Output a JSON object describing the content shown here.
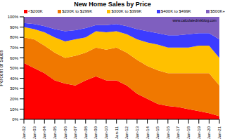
{
  "chart_data": {
    "type": "area",
    "title": "New Home Sales by Price",
    "y_label": "Percent of Sales",
    "annotation": "www.calculatedriskblog.com",
    "stacked": true,
    "grid": false,
    "legend": "top",
    "categories": [
      "Jan-02",
      "Jan-03",
      "Jan-04",
      "Jan-05",
      "Jan-06",
      "Jan-07",
      "Jan-08",
      "Jan-09",
      "Jan-10",
      "Jan-11",
      "Jan-12",
      "Jan-13",
      "Jan-14",
      "Jan-15",
      "Jan-16",
      "Jan-17",
      "Jan-18",
      "Jan-19",
      "Jan-20",
      "Jan-21"
    ],
    "ylim": [
      0,
      100
    ],
    "yticks": [
      {
        "value": 0,
        "label": "0%"
      },
      {
        "value": 10,
        "label": "10%"
      },
      {
        "value": 20,
        "label": "20%"
      },
      {
        "value": 30,
        "label": "30%"
      },
      {
        "value": 40,
        "label": "40%"
      },
      {
        "value": 50,
        "label": "50%"
      },
      {
        "value": 60,
        "label": "60%"
      },
      {
        "value": 70,
        "label": "70%"
      },
      {
        "value": 80,
        "label": "80%"
      },
      {
        "value": 90,
        "label": "90%"
      },
      {
        "value": 100,
        "label": "100%"
      }
    ],
    "series": [
      {
        "name": "<$200K",
        "color": "#ff0000",
        "values": [
          55,
          50,
          45,
          38,
          35,
          33,
          38,
          42,
          38,
          38,
          33,
          25,
          20,
          15,
          13,
          12,
          10,
          8,
          6,
          3
        ]
      },
      {
        "name": "$200K to $299K",
        "color": "#f07800",
        "values": [
          25,
          28,
          27,
          27,
          25,
          29,
          27,
          28,
          30,
          32,
          32,
          33,
          32,
          33,
          32,
          33,
          35,
          37,
          39,
          30
        ]
      },
      {
        "name": "$300K to $399K",
        "color": "#ffc000",
        "values": [
          10,
          10,
          13,
          15,
          16,
          16,
          15,
          16,
          17,
          16,
          18,
          20,
          23,
          25,
          25,
          25,
          25,
          27,
          27,
          27
        ]
      },
      {
        "name": "$400K to $499K",
        "color": "#3c3cff",
        "values": [
          4,
          5,
          6,
          8,
          10,
          9,
          9,
          6,
          7,
          7,
          8,
          10,
          11,
          11,
          12,
          12,
          13,
          12,
          12,
          18
        ]
      },
      {
        "name": "$500K+",
        "color": "#7f5fbf",
        "values": [
          6,
          7,
          9,
          12,
          14,
          13,
          11,
          8,
          8,
          7,
          9,
          12,
          14,
          16,
          18,
          18,
          17,
          16,
          16,
          22
        ]
      }
    ]
  }
}
